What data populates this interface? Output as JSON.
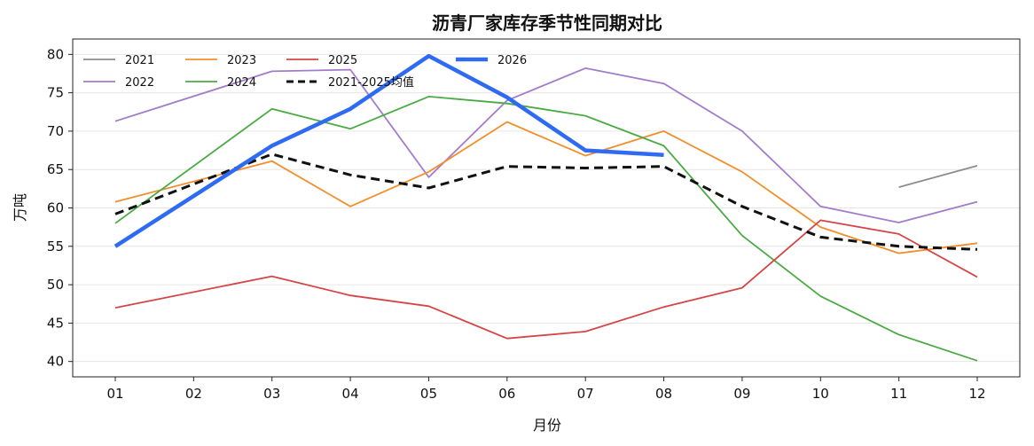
{
  "chart_data": {
    "type": "line",
    "title": "沥青厂家库存季节性同期对比",
    "xlabel": "月份",
    "ylabel": "万吨",
    "categories": [
      "01",
      "02",
      "03",
      "04",
      "05",
      "06",
      "07",
      "08",
      "09",
      "10",
      "11",
      "12"
    ],
    "ylim": [
      38,
      82
    ],
    "yticks": [
      40,
      45,
      50,
      55,
      60,
      65,
      70,
      75,
      80
    ],
    "grid": "horizontal",
    "legend": "top-left",
    "series": [
      {
        "name": "2021",
        "color": "#8c8c8c",
        "style": "solid",
        "values": [
          null,
          null,
          null,
          null,
          null,
          null,
          null,
          null,
          null,
          null,
          62.7,
          65.5
        ]
      },
      {
        "name": "2022",
        "color": "#a27ccb",
        "style": "solid",
        "values": [
          71.3,
          null,
          77.8,
          78.0,
          64.0,
          74.0,
          78.2,
          76.2,
          70.0,
          60.2,
          58.1,
          60.8
        ]
      },
      {
        "name": "2023",
        "color": "#f28e2b",
        "style": "solid",
        "values": [
          60.8,
          null,
          66.1,
          60.2,
          64.7,
          71.2,
          66.8,
          70.0,
          64.7,
          57.5,
          54.1,
          55.4
        ]
      },
      {
        "name": "2024",
        "color": "#4aab45",
        "style": "solid",
        "values": [
          58.0,
          null,
          72.9,
          70.3,
          74.5,
          73.6,
          72.0,
          68.1,
          56.4,
          48.5,
          43.5,
          40.1
        ]
      },
      {
        "name": "2025",
        "color": "#d64545",
        "style": "solid",
        "values": [
          47.0,
          null,
          51.1,
          48.6,
          47.2,
          43.0,
          43.9,
          47.1,
          49.6,
          58.4,
          56.6,
          51.0
        ]
      },
      {
        "name": "2021-2025均值",
        "color": "#111111",
        "style": "dashed",
        "values": [
          59.2,
          null,
          67.0,
          64.3,
          62.6,
          65.4,
          65.2,
          65.4,
          60.2,
          56.2,
          55.0,
          54.6
        ]
      },
      {
        "name": "2026",
        "color": "#2f6bf2",
        "style": "bold",
        "values": [
          55.0,
          null,
          68.1,
          72.9,
          79.8,
          74.4,
          67.5,
          66.9,
          null,
          null,
          null,
          null
        ]
      }
    ]
  }
}
